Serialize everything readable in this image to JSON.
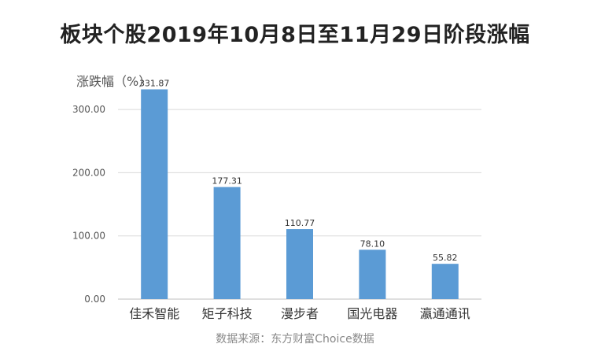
{
  "title": "板块个股2019年10月8日至11月29日阶段涨幅",
  "source": "数据来源：东方财富Choice数据",
  "chart_data": {
    "type": "bar",
    "title": "板块个股2019年10月8日至11月29日阶段涨幅",
    "ylabel": "涨跌幅（%）",
    "xlabel": "",
    "categories": [
      "佳禾智能",
      "矩子科技",
      "漫步者",
      "国光电器",
      "瀛通通讯"
    ],
    "values": [
      331.87,
      177.31,
      110.77,
      78.1,
      55.82
    ],
    "value_labels": [
      "331.87",
      "177.31",
      "110.77",
      "78.10",
      "55.82"
    ],
    "ylim": [
      0,
      330
    ],
    "yticks": [
      0,
      100,
      200,
      300
    ],
    "ytick_labels": [
      "0.00",
      "100.00",
      "200.00",
      "300.00"
    ],
    "grid": true,
    "legend": "none",
    "bar_color": "#5b9bd5"
  }
}
